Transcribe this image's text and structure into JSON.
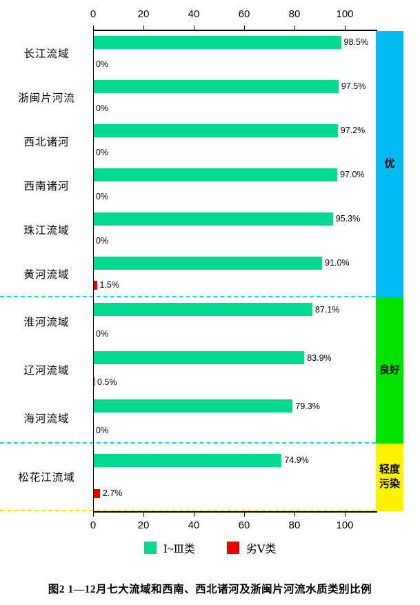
{
  "figure": {
    "caption": "图2 1—12月七大流域和西南、西北诸河及浙闽片河流水质类别比例"
  },
  "axis": {
    "ticks": [
      "0",
      "20",
      "40",
      "60",
      "80",
      "100"
    ]
  },
  "legend": {
    "items": [
      {
        "label": "Ⅰ~Ⅲ类",
        "color": "#00d98e"
      },
      {
        "label": "劣Ⅴ类",
        "color": "#e60000"
      }
    ]
  },
  "chart_data": {
    "type": "bar",
    "orientation": "horizontal",
    "xlim": [
      0,
      100
    ],
    "x_ticks": [
      0,
      20,
      40,
      60,
      80,
      100
    ],
    "series_names": [
      "Ⅰ~Ⅲ类",
      "劣Ⅴ类"
    ],
    "colors": {
      "clean": "#00d98e",
      "bad": "#e60000",
      "band_excellent": "#00baf2",
      "band_good": "#00e400",
      "band_light_pollution": "#fff200"
    },
    "groups": [
      {
        "label": "优",
        "band_color": "#00baf2",
        "basins": [
          {
            "name": "长江流域",
            "clean_pct": 98.5,
            "clean_label": "98.5%",
            "bad_pct": 0,
            "bad_label": "0%"
          },
          {
            "name": "浙闽片河流",
            "clean_pct": 97.5,
            "clean_label": "97.5%",
            "bad_pct": 0,
            "bad_label": "0%"
          },
          {
            "name": "西北诸河",
            "clean_pct": 97.2,
            "clean_label": "97.2%",
            "bad_pct": 0,
            "bad_label": "0%"
          },
          {
            "name": "西南诸河",
            "clean_pct": 97.0,
            "clean_label": "97.0%",
            "bad_pct": 0,
            "bad_label": "0%"
          },
          {
            "name": "珠江流域",
            "clean_pct": 95.3,
            "clean_label": "95.3%",
            "bad_pct": 0,
            "bad_label": "0%"
          },
          {
            "name": "黄河流域",
            "clean_pct": 91.0,
            "clean_label": "91.0%",
            "bad_pct": 1.5,
            "bad_label": "1.5%"
          }
        ]
      },
      {
        "label": "良好",
        "band_color": "#00e400",
        "basins": [
          {
            "name": "淮河流域",
            "clean_pct": 87.1,
            "clean_label": "87.1%",
            "bad_pct": 0,
            "bad_label": "0%"
          },
          {
            "name": "辽河流域",
            "clean_pct": 83.9,
            "clean_label": "83.9%",
            "bad_pct": 0.5,
            "bad_label": "0.5%"
          },
          {
            "name": "海河流域",
            "clean_pct": 79.3,
            "clean_label": "79.3%",
            "bad_pct": 0,
            "bad_label": "0%"
          }
        ]
      },
      {
        "label": "轻度污染",
        "band_color": "#fff200",
        "basins": [
          {
            "name": "松花江流域",
            "clean_pct": 74.9,
            "clean_label": "74.9%",
            "bad_pct": 2.7,
            "bad_label": "2.7%"
          }
        ]
      }
    ]
  }
}
